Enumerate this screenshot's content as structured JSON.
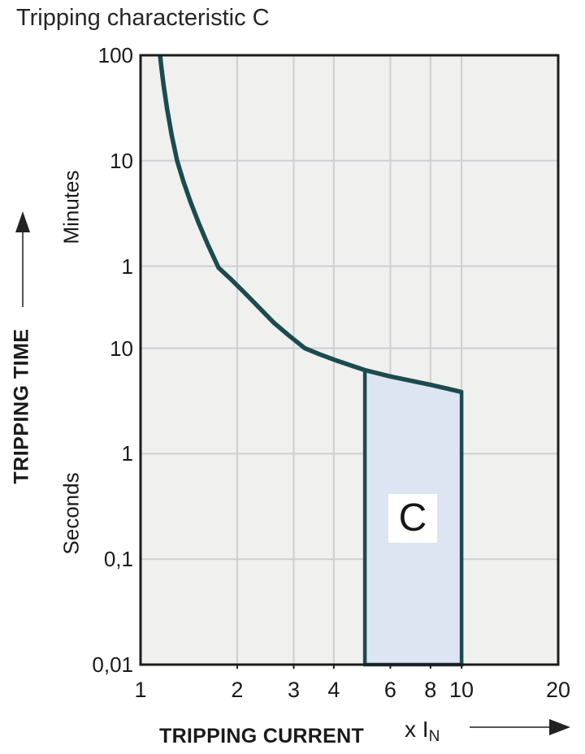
{
  "title": "Tripping characteristic C",
  "colors": {
    "curve": "#1b4b4e",
    "region_fill": "#dde4f2",
    "plot_bg": "#f0f0ee",
    "grid": "#cdcfd3",
    "border": "#1c1c1c",
    "arrow": "#3c3c3c"
  },
  "y_axis": {
    "label": "TRIPPING TIME",
    "unit_upper": "Minutes",
    "unit_lower": "Seconds"
  },
  "x_axis": {
    "label": "TRIPPING CURRENT",
    "multiplier_prefix": "x I",
    "multiplier_sub": "N"
  },
  "chart_data": {
    "type": "line",
    "title": "Tripping characteristic C",
    "xlabel": "TRIPPING CURRENT (x IN)",
    "ylabel": "TRIPPING TIME",
    "x_scale": "log",
    "y_scale": "log",
    "x_range": [
      1,
      20
    ],
    "y_range_seconds": [
      0.01,
      6000
    ],
    "grid": true,
    "x_ticks": [
      {
        "v": 1,
        "label": "1"
      },
      {
        "v": 2,
        "label": "2"
      },
      {
        "v": 3,
        "label": "3"
      },
      {
        "v": 4,
        "label": "4"
      },
      {
        "v": 6,
        "label": "6"
      },
      {
        "v": 8,
        "label": "8"
      },
      {
        "v": 10,
        "label": "10"
      },
      {
        "v": 20,
        "label": "20"
      }
    ],
    "y_ticks": [
      {
        "v": 6000,
        "label": "100",
        "unit": "minutes"
      },
      {
        "v": 600,
        "label": "10",
        "unit": "minutes"
      },
      {
        "v": 60,
        "label": "1",
        "unit": "minutes"
      },
      {
        "v": 10,
        "label": "10",
        "unit": "seconds"
      },
      {
        "v": 1,
        "label": "1",
        "unit": "seconds"
      },
      {
        "v": 0.1,
        "label": "0,1",
        "unit": "seconds"
      },
      {
        "v": 0.01,
        "label": "0,01",
        "unit": "seconds"
      }
    ],
    "x_gridlines": [
      2,
      3,
      4,
      6,
      8,
      10
    ],
    "y_gridlines_seconds": [
      600,
      60,
      10,
      1,
      0.1
    ],
    "series": [
      {
        "name": "C tripping characteristic",
        "points_x_multiple_time_seconds": [
          [
            1.15,
            6000
          ],
          [
            1.16,
            4700
          ],
          [
            1.18,
            3100
          ],
          [
            1.21,
            1850
          ],
          [
            1.25,
            1050
          ],
          [
            1.3,
            600
          ],
          [
            1.36,
            380
          ],
          [
            1.43,
            245
          ],
          [
            1.52,
            152
          ],
          [
            1.62,
            96
          ],
          [
            1.75,
            58
          ],
          [
            1.9,
            46
          ],
          [
            2.1,
            34
          ],
          [
            2.35,
            24
          ],
          [
            2.6,
            17.5
          ],
          [
            2.9,
            13.2
          ],
          [
            3.25,
            10
          ],
          [
            3.6,
            8.8
          ],
          [
            4.0,
            7.8
          ],
          [
            4.5,
            6.9
          ],
          [
            5.0,
            6.2
          ],
          [
            6.0,
            5.4
          ],
          [
            7.0,
            4.9
          ],
          [
            8.0,
            4.5
          ],
          [
            9.0,
            4.15
          ],
          [
            10.0,
            3.85
          ]
        ]
      }
    ],
    "region": {
      "label": "C",
      "x_min": 5,
      "x_max": 10,
      "t_bottom_seconds": 0.01
    }
  }
}
